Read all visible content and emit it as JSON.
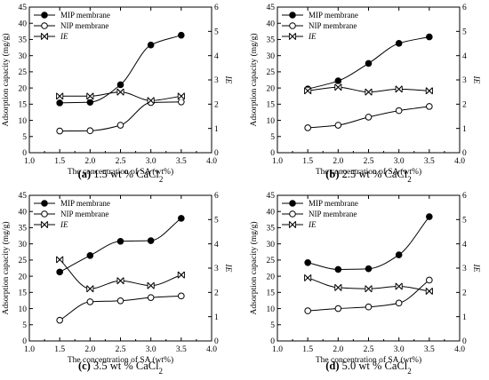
{
  "panel_order": [
    "a",
    "b",
    "c",
    "d"
  ],
  "legend_labels": {
    "mip": "MIP membrane",
    "nip": "NIP membrane",
    "ie": "IE"
  },
  "colors": {
    "line": "#000000",
    "background": "#ffffff",
    "filled_marker": "#000000",
    "open_marker": "#ffffff"
  },
  "chart_data": [
    {
      "type": "line",
      "id": "a",
      "caption_prefix": "(a)",
      "caption_text": "1.5 wt % CaCl",
      "caption_sub": "2",
      "xlabel": "The concentration of SA (wt%)",
      "ylabel": "Adsorption capacity (mg/g)",
      "y2label": "IE",
      "xlim": [
        1.0,
        4.0
      ],
      "ylim": [
        0,
        45
      ],
      "y2lim": [
        0,
        6
      ],
      "xticks": [
        "1.0",
        "1.5",
        "2.0",
        "2.5",
        "3.0",
        "3.5",
        "4.0"
      ],
      "yticks": [
        "0",
        "5",
        "10",
        "15",
        "20",
        "25",
        "30",
        "35",
        "40",
        "45"
      ],
      "y2ticks": [
        "0",
        "1",
        "2",
        "3",
        "4",
        "5",
        "6"
      ],
      "x": [
        1.5,
        2.0,
        2.5,
        3.0,
        3.5
      ],
      "legend_position": "top-left",
      "series": [
        {
          "name": "MIP membrane",
          "key": "mip",
          "axis": "left",
          "marker": "filled-circle",
          "values": [
            15.4,
            15.6,
            21.0,
            33.3,
            36.3
          ]
        },
        {
          "name": "NIP membrane",
          "key": "nip",
          "axis": "left",
          "marker": "open-circle",
          "values": [
            6.7,
            6.8,
            8.5,
            15.5,
            15.7
          ]
        },
        {
          "name": "IE",
          "key": "ie",
          "axis": "right",
          "marker": "cross-x",
          "values": [
            2.33,
            2.33,
            2.5,
            2.15,
            2.33
          ]
        }
      ]
    },
    {
      "type": "line",
      "id": "b",
      "caption_prefix": "(b)",
      "caption_text": "2.5 wt % CaCl",
      "caption_sub": "2",
      "xlabel": "The concentration of SA (wt%)",
      "ylabel": "Adsorption capacity (mg/g)",
      "y2label": "IE",
      "xlim": [
        1.0,
        4.0
      ],
      "ylim": [
        0,
        45
      ],
      "y2lim": [
        0,
        6
      ],
      "xticks": [
        "1.0",
        "1.5",
        "2.0",
        "2.5",
        "3.0",
        "3.5",
        "4.0"
      ],
      "yticks": [
        "0",
        "5",
        "10",
        "15",
        "20",
        "25",
        "30",
        "35",
        "40",
        "45"
      ],
      "y2ticks": [
        "0",
        "1",
        "2",
        "3",
        "4",
        "5",
        "6"
      ],
      "x": [
        1.5,
        2.0,
        2.5,
        3.0,
        3.5
      ],
      "legend_position": "top-left",
      "series": [
        {
          "name": "MIP membrane",
          "key": "mip",
          "axis": "left",
          "marker": "filled-circle",
          "values": [
            19.7,
            22.2,
            27.6,
            33.8,
            35.8
          ]
        },
        {
          "name": "NIP membrane",
          "key": "nip",
          "axis": "left",
          "marker": "open-circle",
          "values": [
            7.7,
            8.5,
            11.0,
            13.0,
            14.3
          ]
        },
        {
          "name": "IE",
          "key": "ie",
          "axis": "right",
          "marker": "cross-x",
          "values": [
            2.55,
            2.7,
            2.5,
            2.62,
            2.55
          ]
        }
      ]
    },
    {
      "type": "line",
      "id": "c",
      "caption_prefix": "(c)",
      "caption_text": "3.5 wt % CaCl",
      "caption_sub": "2",
      "xlabel": "The concentration of SA (wt%)",
      "ylabel": "Adsorption capacity (mg/g)",
      "y2label": "IE",
      "xlim": [
        1.0,
        4.0
      ],
      "ylim": [
        0,
        45
      ],
      "y2lim": [
        0,
        6
      ],
      "xticks": [
        "1.0",
        "1.5",
        "2.0",
        "2.5",
        "3.0",
        "3.5",
        "4.0"
      ],
      "yticks": [
        "0",
        "5",
        "10",
        "15",
        "20",
        "25",
        "30",
        "35",
        "40",
        "45"
      ],
      "y2ticks": [
        "0",
        "1",
        "2",
        "3",
        "4",
        "5",
        "6"
      ],
      "x": [
        1.5,
        2.0,
        2.5,
        3.0,
        3.5
      ],
      "legend_position": "top-left",
      "series": [
        {
          "name": "MIP membrane",
          "key": "mip",
          "axis": "left",
          "marker": "filled-circle",
          "values": [
            21.3,
            26.4,
            30.8,
            31.0,
            37.9
          ]
        },
        {
          "name": "NIP membrane",
          "key": "nip",
          "axis": "left",
          "marker": "open-circle",
          "values": [
            6.4,
            12.1,
            12.4,
            13.4,
            13.9
          ]
        },
        {
          "name": "IE",
          "key": "ie",
          "axis": "right",
          "marker": "cross-x",
          "values": [
            3.35,
            2.15,
            2.48,
            2.28,
            2.72
          ]
        }
      ]
    },
    {
      "type": "line",
      "id": "d",
      "caption_prefix": "(d)",
      "caption_text": "5.0 wt % CaCl",
      "caption_sub": "2",
      "xlabel": "The concentration of SA (wt%)",
      "ylabel": "Adsorption capacity (mg/g)",
      "y2label": "IE",
      "xlim": [
        1.0,
        4.0
      ],
      "ylim": [
        0,
        45
      ],
      "y2lim": [
        0,
        6
      ],
      "xticks": [
        "1.0",
        "1.5",
        "2.0",
        "2.5",
        "3.0",
        "3.5",
        "4.0"
      ],
      "yticks": [
        "0",
        "5",
        "10",
        "15",
        "20",
        "25",
        "30",
        "35",
        "40",
        "45"
      ],
      "y2ticks": [
        "0",
        "1",
        "2",
        "3",
        "4",
        "5",
        "6"
      ],
      "x": [
        1.5,
        2.0,
        2.5,
        3.0,
        3.5
      ],
      "legend_position": "top-left",
      "series": [
        {
          "name": "MIP membrane",
          "key": "mip",
          "axis": "left",
          "marker": "filled-circle",
          "values": [
            24.2,
            22.1,
            22.3,
            26.6,
            38.4
          ]
        },
        {
          "name": "NIP membrane",
          "key": "nip",
          "axis": "left",
          "marker": "open-circle",
          "values": [
            9.3,
            10.0,
            10.5,
            11.7,
            18.8
          ]
        },
        {
          "name": "IE",
          "key": "ie",
          "axis": "right",
          "marker": "cross-x",
          "values": [
            2.6,
            2.2,
            2.15,
            2.25,
            2.05
          ]
        }
      ]
    }
  ]
}
